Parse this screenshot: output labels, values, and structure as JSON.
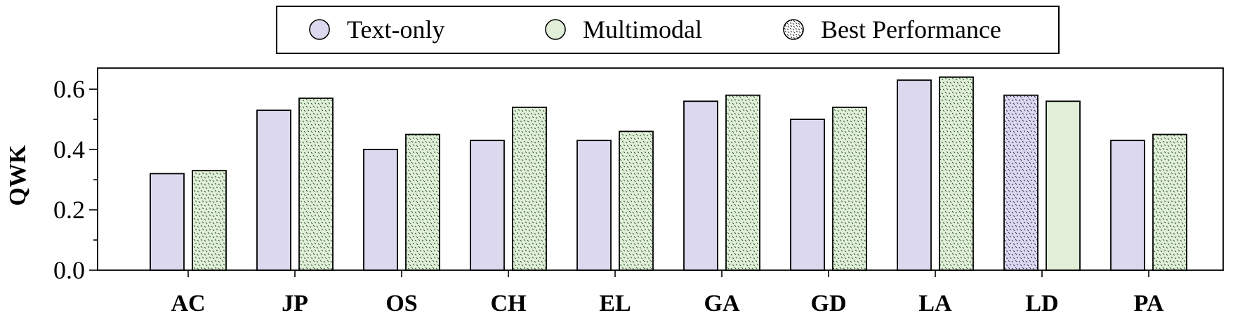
{
  "chart_data": {
    "type": "bar",
    "ylabel": "QWK",
    "xlabel": "",
    "ylim": [
      0,
      0.67
    ],
    "yticks": [
      0.0,
      0.2,
      0.4,
      0.6
    ],
    "ytick_labels": [
      "0.0",
      "0.2",
      "0.4",
      "0.6"
    ],
    "categories": [
      "AC",
      "JP",
      "OS",
      "CH",
      "EL",
      "GA",
      "GD",
      "LA",
      "LD",
      "PA"
    ],
    "series": [
      {
        "name": "Text-only",
        "color": "#dcd8ee",
        "values": [
          0.32,
          0.53,
          0.4,
          0.43,
          0.43,
          0.56,
          0.5,
          0.63,
          0.58,
          0.43
        ]
      },
      {
        "name": "Multimodal",
        "color": "#e1efd9",
        "values": [
          0.33,
          0.57,
          0.45,
          0.54,
          0.46,
          0.58,
          0.54,
          0.64,
          0.56,
          0.45
        ]
      }
    ],
    "best": [
      "Multimodal",
      "Multimodal",
      "Multimodal",
      "Multimodal",
      "Multimodal",
      "Multimodal",
      "Multimodal",
      "Multimodal",
      "Text-only",
      "Multimodal"
    ],
    "legend": {
      "placement": "top-center",
      "entries": [
        "Text-only",
        "Multimodal",
        "Best Performance"
      ]
    }
  }
}
